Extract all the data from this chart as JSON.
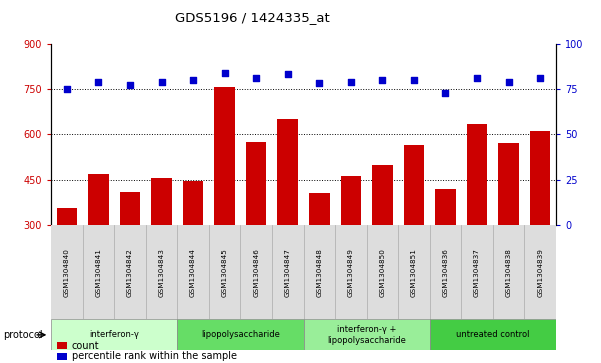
{
  "title": "GDS5196 / 1424335_at",
  "samples": [
    "GSM1304840",
    "GSM1304841",
    "GSM1304842",
    "GSM1304843",
    "GSM1304844",
    "GSM1304845",
    "GSM1304846",
    "GSM1304847",
    "GSM1304848",
    "GSM1304849",
    "GSM1304850",
    "GSM1304851",
    "GSM1304836",
    "GSM1304837",
    "GSM1304838",
    "GSM1304839"
  ],
  "counts": [
    355,
    468,
    408,
    455,
    445,
    755,
    575,
    650,
    405,
    463,
    498,
    565,
    420,
    635,
    570,
    610
  ],
  "percentile_ranks": [
    75,
    79,
    77,
    79,
    80,
    84,
    81,
    83,
    78,
    79,
    80,
    80,
    73,
    81,
    79,
    81
  ],
  "groups": [
    {
      "label": "interferon-γ",
      "start": 0,
      "end": 4,
      "color": "#ccffcc"
    },
    {
      "label": "lipopolysaccharide",
      "start": 4,
      "end": 8,
      "color": "#66dd66"
    },
    {
      "label": "interferon-γ +\nlipopolysaccharide",
      "start": 8,
      "end": 12,
      "color": "#99ee99"
    },
    {
      "label": "untreated control",
      "start": 12,
      "end": 16,
      "color": "#44cc44"
    }
  ],
  "bar_color": "#cc0000",
  "dot_color": "#0000cc",
  "ylim_left": [
    300,
    900
  ],
  "ylim_right": [
    0,
    100
  ],
  "yticks_left": [
    300,
    450,
    600,
    750,
    900
  ],
  "yticks_right": [
    0,
    25,
    50,
    75,
    100
  ],
  "hlines": [
    450,
    600,
    750
  ],
  "legend_count_label": "count",
  "legend_percentile_label": "percentile rank within the sample",
  "protocol_label": "protocol",
  "left_axis_color": "#cc0000",
  "right_axis_color": "#0000cc"
}
